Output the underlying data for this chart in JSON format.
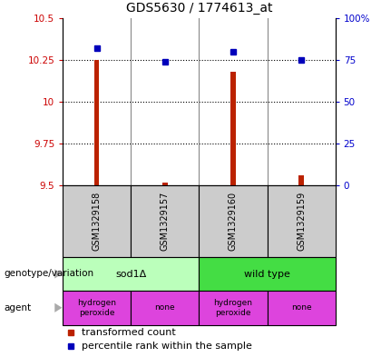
{
  "title": "GDS5630 / 1774613_at",
  "samples": [
    "GSM1329158",
    "GSM1329157",
    "GSM1329160",
    "GSM1329159"
  ],
  "transformed_counts": [
    10.25,
    9.52,
    10.18,
    9.56
  ],
  "bar_bottoms": [
    9.5,
    9.5,
    9.5,
    9.5
  ],
  "percentile_ranks": [
    82,
    74,
    80,
    75
  ],
  "ylim_left": [
    9.5,
    10.5
  ],
  "ylim_right": [
    0,
    100
  ],
  "yticks_left": [
    9.5,
    9.75,
    10.0,
    10.25,
    10.5
  ],
  "yticks_right": [
    0,
    25,
    50,
    75,
    100
  ],
  "ytick_labels_left": [
    "9.5",
    "9.75",
    "10",
    "10.25",
    "10.5"
  ],
  "ytick_labels_right": [
    "0",
    "25",
    "50",
    "75",
    "100%"
  ],
  "bar_color": "#bb2200",
  "marker_color": "#0000bb",
  "genotype_colors": [
    "#bbffbb",
    "#44dd44"
  ],
  "genotype_labels": [
    "sod1Δ",
    "wild type"
  ],
  "agent_color": "#dd44dd",
  "agent_labels": [
    "hydrogen\nperoxide",
    "none",
    "hydrogen\nperoxide",
    "none"
  ],
  "sample_box_color": "#cccccc",
  "title_fontsize": 10,
  "tick_fontsize": 7.5,
  "sample_fontsize": 7,
  "label_fontsize": 8,
  "legend_fontsize": 8,
  "agent_fontsize": 6.5
}
